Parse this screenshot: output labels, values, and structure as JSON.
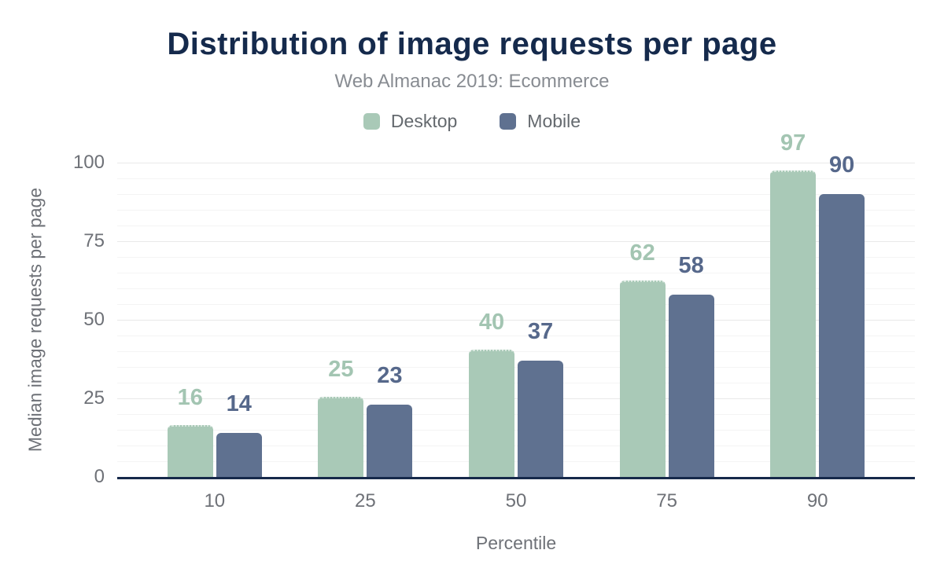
{
  "chart_data": {
    "type": "bar",
    "title": "Distribution of image requests per page",
    "subtitle": "Web Almanac 2019: Ecommerce",
    "xlabel": "Percentile",
    "ylabel": "Median image requests per page",
    "categories": [
      "10",
      "25",
      "50",
      "75",
      "90"
    ],
    "series": [
      {
        "name": "Desktop",
        "color": "#a9c9b7",
        "label_color": "#a3c5b2",
        "values": [
          16,
          25,
          40,
          62,
          97
        ]
      },
      {
        "name": "Mobile",
        "color": "#5f7190",
        "label_color": "#56688b",
        "values": [
          14,
          23,
          37,
          58,
          90
        ]
      }
    ],
    "yticks": [
      0,
      25,
      50,
      75,
      100
    ],
    "ylim": [
      0,
      100
    ],
    "grid": true,
    "minor_grid_step": 5,
    "legend_position": "top",
    "colors": {
      "title": "#152a4c",
      "subtitle": "#888c92",
      "axis_line": "#16294a",
      "tick_text": "#6e7177",
      "legend_text": "#64696e",
      "major_gridline": "#e9e9e9",
      "minor_gridline": "#f4f4f4"
    }
  }
}
